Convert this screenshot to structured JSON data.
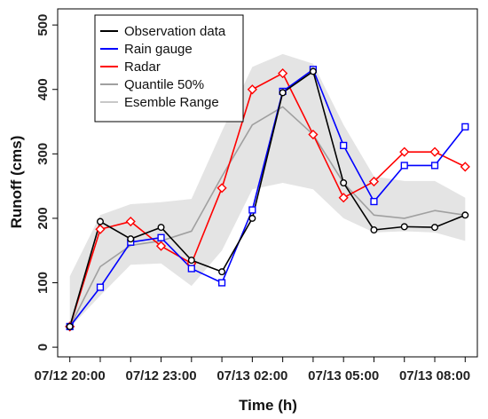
{
  "chart_data": {
    "type": "line",
    "xlabel": "Time (h)",
    "ylabel": "Runoff (cms)",
    "xlim": [
      -0.4,
      13.4
    ],
    "ylim": [
      -15,
      525
    ],
    "x_ticks": [
      {
        "x": 0,
        "label": "07/12 20:00"
      },
      {
        "x": 3,
        "label": "07/12 23:00"
      },
      {
        "x": 6,
        "label": "07/13 02:00"
      },
      {
        "x": 9,
        "label": "07/13 05:00"
      },
      {
        "x": 12,
        "label": "07/13 08:00"
      }
    ],
    "y_ticks": [
      0,
      100,
      200,
      300,
      400,
      500
    ],
    "x": [
      0,
      1,
      2,
      3,
      4,
      5,
      6,
      7,
      8,
      9,
      10,
      11,
      12,
      13
    ],
    "legend_position": "top-left",
    "series": [
      {
        "name": "Observation data",
        "color": "#000000",
        "marker": "circle",
        "values": [
          32,
          195,
          168,
          186,
          135,
          117,
          200,
          395,
          428,
          255,
          182,
          187,
          186,
          205
        ]
      },
      {
        "name": "Rain gauge",
        "color": "#0000ff",
        "marker": "square",
        "values": [
          32,
          93,
          163,
          170,
          122,
          100,
          213,
          397,
          431,
          313,
          226,
          282,
          282,
          342
        ]
      },
      {
        "name": "Radar",
        "color": "#ff0000",
        "marker": "diamond",
        "values": [
          32,
          183,
          195,
          157,
          130,
          247,
          400,
          425,
          330,
          232,
          257,
          303,
          303,
          280
        ]
      },
      {
        "name": "Quantile 50%",
        "color": "#a0a0a0",
        "marker": "none",
        "values": [
          32,
          125,
          158,
          165,
          180,
          265,
          345,
          373,
          330,
          255,
          205,
          200,
          212,
          205
        ]
      }
    ],
    "band": {
      "name": "Esemble Range",
      "color": "#e4e4e4",
      "legend_line_color": "#c8c8c8",
      "lower": [
        30,
        80,
        128,
        130,
        95,
        150,
        245,
        255,
        245,
        200,
        178,
        180,
        178,
        165
      ],
      "upper": [
        110,
        205,
        222,
        225,
        230,
        335,
        435,
        455,
        440,
        345,
        265,
        258,
        258,
        232
      ]
    }
  }
}
